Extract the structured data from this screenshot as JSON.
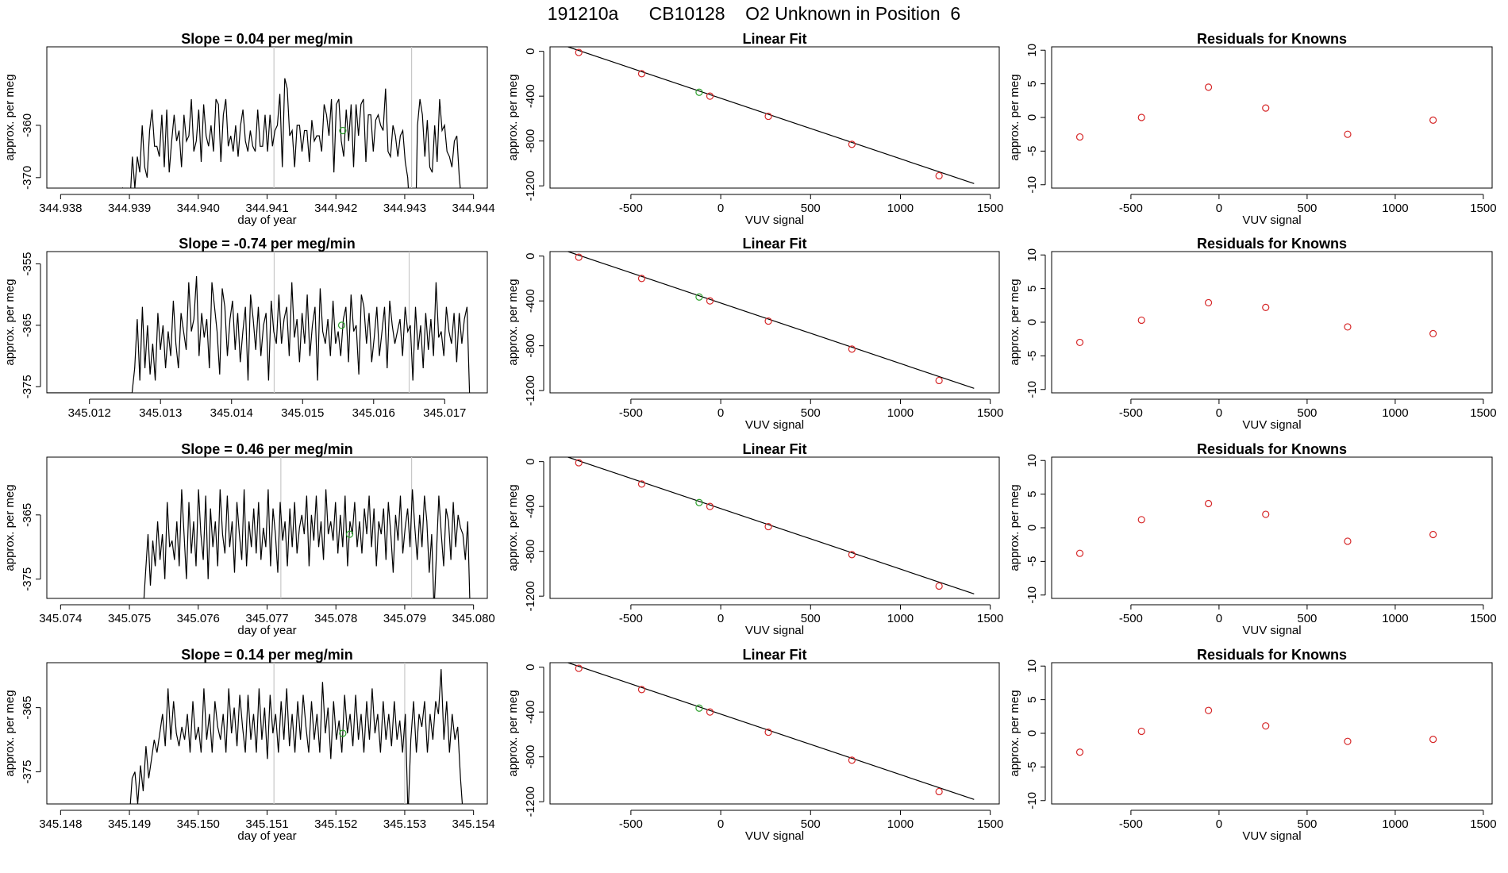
{
  "figure": {
    "title": "191210a      CB10128    O2 Unknown in Position  6"
  },
  "colors": {
    "line": "#000000",
    "known_point": "#d62728",
    "unknown_point": "#2ca02c",
    "vline": "#c8c8c8",
    "fit_line": "#000000"
  },
  "chart_data": [
    {
      "panel": "time-series-1",
      "type": "line",
      "title": "Slope =  0.04  per meg/min",
      "xlabel": "day of year",
      "ylabel": "approx. per meg",
      "xlim": [
        344.9378,
        344.9442
      ],
      "ylim": [
        -372,
        -345
      ],
      "xticks": [
        "344.938",
        "344.939",
        "344.940",
        "344.941",
        "344.942",
        "344.943",
        "344.944"
      ],
      "yticks": [
        "-370",
        "-360"
      ],
      "x_start": 344.9389,
      "x_end": 344.9439,
      "baseline": -385,
      "series_values": [
        -372,
        -378,
        -385,
        -375,
        -366,
        -372,
        -366,
        -369,
        -360,
        -368,
        -370,
        -361,
        -357,
        -364,
        -364,
        -366,
        -358,
        -368,
        -357,
        -369,
        -363,
        -358,
        -363,
        -361,
        -368,
        -358,
        -363,
        -362,
        -355,
        -365,
        -363,
        -357,
        -367,
        -356,
        -362,
        -364,
        -360,
        -365,
        -355,
        -356,
        -367,
        -358,
        -355,
        -364,
        -362,
        -365,
        -360,
        -366,
        -360,
        -357,
        -363,
        -365,
        -361,
        -364,
        -365,
        -357,
        -364,
        -364,
        -358,
        -365,
        -358,
        -364,
        -361,
        -360,
        -354,
        -368,
        -351,
        -353,
        -362,
        -361,
        -368,
        -360,
        -360,
        -365,
        -361,
        -361,
        -367,
        -359,
        -363,
        -362,
        -362,
        -365,
        -356,
        -358,
        -362,
        -355,
        -369,
        -356,
        -355,
        -363,
        -366,
        -357,
        -363,
        -356,
        -368,
        -356,
        -362,
        -356,
        -355,
        -367,
        -358,
        -358,
        -365,
        -359,
        -358,
        -360,
        -361,
        -353,
        -365,
        -366,
        -360,
        -362,
        -366,
        -362,
        -361,
        -367,
        -370,
        -378,
        -385,
        -385,
        -360,
        -355,
        -358,
        -366,
        -359,
        -368,
        -369,
        -360,
        -367,
        -355,
        -361,
        -360,
        -365,
        -366,
        -368,
        -363,
        -362,
        -370,
        -375,
        -380,
        -385
      ],
      "vlines": [
        344.9411,
        344.9431
      ],
      "unknown_point": {
        "x": 344.9421,
        "y": -361
      }
    },
    {
      "panel": "linear-fit-1",
      "type": "scatter",
      "title": "Linear Fit",
      "xlabel": "VUV signal",
      "ylabel": "approx. per meg",
      "xlim": [
        -950,
        1550
      ],
      "ylim": [
        -1220,
        40
      ],
      "xticks": [
        -500,
        0,
        500,
        1000,
        1500
      ],
      "yticks": [
        0,
        -400,
        -800,
        -1200
      ],
      "fit_line": {
        "x": [
          -850,
          1410
        ],
        "y": [
          40,
          -1180
        ]
      },
      "known_points": [
        {
          "x": -790,
          "y": -10
        },
        {
          "x": -440,
          "y": -200
        },
        {
          "x": -60,
          "y": -400
        },
        {
          "x": 265,
          "y": -580
        },
        {
          "x": 730,
          "y": -830
        },
        {
          "x": 1215,
          "y": -1110
        }
      ],
      "unknown_point": {
        "x": -120,
        "y": -365
      }
    },
    {
      "panel": "residuals-1",
      "type": "scatter",
      "title": "Residuals for Knowns",
      "xlabel": "VUV signal",
      "ylabel": "approx. per meg",
      "xlim": [
        -950,
        1550
      ],
      "ylim": [
        -10.5,
        10.5
      ],
      "xticks": [
        -500,
        0,
        500,
        1000,
        1500
      ],
      "yticks": [
        -10,
        -5,
        0,
        5,
        10
      ],
      "points": [
        {
          "x": -790,
          "y": -2.9
        },
        {
          "x": -440,
          "y": 0.0
        },
        {
          "x": -60,
          "y": 4.5
        },
        {
          "x": 265,
          "y": 1.4
        },
        {
          "x": 730,
          "y": -2.5
        },
        {
          "x": 1215,
          "y": -0.4
        }
      ]
    },
    {
      "panel": "time-series-2",
      "type": "line",
      "title": "Slope =  -0.74  per meg/min",
      "xlabel": "",
      "ylabel": "approx. per meg",
      "xlim": [
        345.0114,
        345.0176
      ],
      "ylim": [
        -376,
        -353
      ],
      "xticks": [
        "345.012",
        "345.013",
        "345.014",
        "345.015",
        "345.016",
        "345.017"
      ],
      "yticks": [
        "-375",
        "-365",
        "-355"
      ],
      "x_start": 345.0126,
      "x_end": 345.01735,
      "baseline": -376,
      "series_values": [
        -376,
        -372,
        -364,
        -374,
        -362,
        -372,
        -365,
        -373,
        -368,
        -374,
        -363,
        -369,
        -365,
        -372,
        -366,
        -370,
        -361,
        -368,
        -372,
        -363,
        -366,
        -369,
        -358,
        -366,
        -364,
        -357,
        -370,
        -363,
        -367,
        -364,
        -372,
        -358,
        -362,
        -366,
        -373,
        -359,
        -362,
        -370,
        -364,
        -361,
        -369,
        -363,
        -371,
        -366,
        -362,
        -374,
        -360,
        -364,
        -369,
        -362,
        -370,
        -365,
        -363,
        -374,
        -361,
        -366,
        -368,
        -360,
        -368,
        -364,
        -362,
        -370,
        -358,
        -367,
        -364,
        -371,
        -363,
        -368,
        -360,
        -370,
        -365,
        -362,
        -374,
        -359,
        -366,
        -368,
        -364,
        -370,
        -361,
        -368,
        -366,
        -370,
        -364,
        -362,
        -371,
        -360,
        -366,
        -365,
        -373,
        -360,
        -362,
        -368,
        -363,
        -371,
        -367,
        -362,
        -370,
        -366,
        -362,
        -372,
        -361,
        -365,
        -368,
        -366,
        -364,
        -370,
        -362,
        -366,
        -365,
        -374,
        -362,
        -369,
        -365,
        -372,
        -363,
        -369,
        -364,
        -370,
        -358,
        -367,
        -366,
        -370,
        -362,
        -366,
        -368,
        -363,
        -371,
        -363,
        -368,
        -364,
        -362,
        -376
      ],
      "vlines": [
        345.0146,
        345.0165
      ],
      "unknown_point": {
        "x": 345.01555,
        "y": -365
      }
    },
    {
      "panel": "linear-fit-2",
      "type": "scatter",
      "title": "Linear Fit",
      "xlabel": "VUV signal",
      "ylabel": "approx. per meg",
      "xlim": [
        -950,
        1550
      ],
      "ylim": [
        -1220,
        40
      ],
      "xticks": [
        -500,
        0,
        500,
        1000,
        1500
      ],
      "yticks": [
        0,
        -400,
        -800,
        -1200
      ],
      "fit_line": {
        "x": [
          -850,
          1410
        ],
        "y": [
          40,
          -1180
        ]
      },
      "known_points": [
        {
          "x": -790,
          "y": -10
        },
        {
          "x": -440,
          "y": -200
        },
        {
          "x": -60,
          "y": -400
        },
        {
          "x": 265,
          "y": -580
        },
        {
          "x": 730,
          "y": -830
        },
        {
          "x": 1215,
          "y": -1110
        }
      ],
      "unknown_point": {
        "x": -120,
        "y": -365
      }
    },
    {
      "panel": "residuals-2",
      "type": "scatter",
      "title": "Residuals for Knowns",
      "xlabel": "VUV signal",
      "ylabel": "approx. per meg",
      "xlim": [
        -950,
        1550
      ],
      "ylim": [
        -10.5,
        10.5
      ],
      "xticks": [
        -500,
        0,
        500,
        1000,
        1500
      ],
      "yticks": [
        -10,
        -5,
        0,
        5,
        10
      ],
      "points": [
        {
          "x": -790,
          "y": -3.0
        },
        {
          "x": -440,
          "y": 0.3
        },
        {
          "x": -60,
          "y": 2.9
        },
        {
          "x": 265,
          "y": 2.2
        },
        {
          "x": 730,
          "y": -0.7
        },
        {
          "x": 1215,
          "y": -1.7
        }
      ]
    },
    {
      "panel": "time-series-3",
      "type": "line",
      "title": "Slope =  0.46  per meg/min",
      "xlabel": "day of year",
      "ylabel": "approx. per meg",
      "xlim": [
        345.0738,
        345.0802
      ],
      "ylim": [
        -378,
        -356
      ],
      "xticks": [
        "345.074",
        "345.075",
        "345.076",
        "345.077",
        "345.078",
        "345.079",
        "345.080"
      ],
      "yticks": [
        "-375",
        "-365"
      ],
      "x_start": 345.0752,
      "x_end": 345.07995,
      "baseline": -380,
      "series_values": [
        -380,
        -374,
        -368,
        -376,
        -369,
        -373,
        -366,
        -372,
        -368,
        -375,
        -363,
        -370,
        -369,
        -372,
        -366,
        -373,
        -361,
        -368,
        -375,
        -363,
        -371,
        -366,
        -373,
        -361,
        -368,
        -372,
        -362,
        -375,
        -364,
        -370,
        -366,
        -373,
        -361,
        -368,
        -371,
        -362,
        -370,
        -366,
        -374,
        -363,
        -368,
        -372,
        -361,
        -373,
        -366,
        -370,
        -364,
        -371,
        -363,
        -372,
        -367,
        -370,
        -361,
        -373,
        -364,
        -368,
        -374,
        -363,
        -369,
        -366,
        -373,
        -364,
        -370,
        -363,
        -371,
        -367,
        -365,
        -368,
        -362,
        -373,
        -365,
        -369,
        -362,
        -370,
        -366,
        -372,
        -361,
        -368,
        -366,
        -369,
        -363,
        -371,
        -365,
        -370,
        -362,
        -373,
        -366,
        -368,
        -363,
        -370,
        -366,
        -371,
        -364,
        -368,
        -362,
        -370,
        -364,
        -373,
        -366,
        -368,
        -364,
        -372,
        -363,
        -368,
        -374,
        -365,
        -369,
        -362,
        -371,
        -367,
        -364,
        -370,
        -361,
        -367,
        -372,
        -365,
        -370,
        -362,
        -366,
        -374,
        -368,
        -380,
        -371,
        -362,
        -368,
        -373,
        -364,
        -366,
        -372,
        -363,
        -370,
        -365,
        -367,
        -368,
        -372,
        -366,
        -380
      ],
      "vlines": [
        345.0772,
        345.0791
      ],
      "unknown_point": {
        "x": 345.0782,
        "y": -368
      }
    },
    {
      "panel": "linear-fit-3",
      "type": "scatter",
      "title": "Linear Fit",
      "xlabel": "VUV signal",
      "ylabel": "approx. per meg",
      "xlim": [
        -950,
        1550
      ],
      "ylim": [
        -1220,
        40
      ],
      "xticks": [
        -500,
        0,
        500,
        1000,
        1500
      ],
      "yticks": [
        0,
        -400,
        -800,
        -1200
      ],
      "fit_line": {
        "x": [
          -850,
          1410
        ],
        "y": [
          40,
          -1180
        ]
      },
      "known_points": [
        {
          "x": -790,
          "y": -10
        },
        {
          "x": -440,
          "y": -200
        },
        {
          "x": -60,
          "y": -400
        },
        {
          "x": 265,
          "y": -580
        },
        {
          "x": 730,
          "y": -830
        },
        {
          "x": 1215,
          "y": -1110
        }
      ],
      "unknown_point": {
        "x": -120,
        "y": -365
      }
    },
    {
      "panel": "residuals-3",
      "type": "scatter",
      "title": "Residuals for Knowns",
      "xlabel": "VUV signal",
      "ylabel": "approx. per meg",
      "xlim": [
        -950,
        1550
      ],
      "ylim": [
        -10.5,
        10.5
      ],
      "xticks": [
        -500,
        0,
        500,
        1000,
        1500
      ],
      "yticks": [
        -10,
        -5,
        0,
        5,
        10
      ],
      "points": [
        {
          "x": -790,
          "y": -3.8
        },
        {
          "x": -440,
          "y": 1.2
        },
        {
          "x": -60,
          "y": 3.6
        },
        {
          "x": 265,
          "y": 2.0
        },
        {
          "x": 730,
          "y": -2.0
        },
        {
          "x": 1215,
          "y": -1.0
        }
      ]
    },
    {
      "panel": "time-series-4",
      "type": "line",
      "title": "Slope =  0.14  per meg/min",
      "xlabel": "day of year",
      "ylabel": "approx. per meg",
      "xlim": [
        345.1478,
        345.1542
      ],
      "ylim": [
        -380,
        -358
      ],
      "xticks": [
        "345.148",
        "345.149",
        "345.150",
        "345.151",
        "345.152",
        "345.153",
        "345.154"
      ],
      "yticks": [
        "-375",
        "-365"
      ],
      "x_start": 345.149,
      "x_end": 345.15385,
      "baseline": -382,
      "series_values": [
        -382,
        -376,
        -375,
        -380,
        -374,
        -378,
        -371,
        -376,
        -373,
        -370,
        -372,
        -369,
        -366,
        -371,
        -362,
        -370,
        -364,
        -369,
        -371,
        -368,
        -370,
        -366,
        -372,
        -364,
        -370,
        -368,
        -372,
        -362,
        -370,
        -366,
        -372,
        -364,
        -368,
        -370,
        -366,
        -372,
        -362,
        -369,
        -365,
        -371,
        -363,
        -368,
        -372,
        -363,
        -370,
        -366,
        -372,
        -362,
        -370,
        -365,
        -373,
        -363,
        -369,
        -366,
        -372,
        -364,
        -370,
        -362,
        -371,
        -366,
        -372,
        -364,
        -370,
        -363,
        -368,
        -372,
        -364,
        -370,
        -366,
        -372,
        -361,
        -369,
        -365,
        -373,
        -364,
        -370,
        -367,
        -372,
        -363,
        -369,
        -366,
        -371,
        -363,
        -370,
        -366,
        -372,
        -364,
        -370,
        -362,
        -369,
        -366,
        -372,
        -364,
        -370,
        -366,
        -371,
        -364,
        -370,
        -367,
        -372,
        -366,
        -382,
        -370,
        -364,
        -372,
        -366,
        -368,
        -364,
        -372,
        -366,
        -370,
        -364,
        -366,
        -359,
        -370,
        -364,
        -372,
        -366,
        -370,
        -368,
        -376,
        -382
      ],
      "vlines": [
        345.1511,
        345.153
      ],
      "unknown_point": {
        "x": 345.1521,
        "y": -369
      }
    },
    {
      "panel": "linear-fit-4",
      "type": "scatter",
      "title": "Linear Fit",
      "xlabel": "VUV signal",
      "ylabel": "approx. per meg",
      "xlim": [
        -950,
        1550
      ],
      "ylim": [
        -1220,
        40
      ],
      "xticks": [
        -500,
        0,
        500,
        1000,
        1500
      ],
      "yticks": [
        0,
        -400,
        -800,
        -1200
      ],
      "fit_line": {
        "x": [
          -850,
          1410
        ],
        "y": [
          40,
          -1180
        ]
      },
      "known_points": [
        {
          "x": -790,
          "y": -10
        },
        {
          "x": -440,
          "y": -200
        },
        {
          "x": -60,
          "y": -400
        },
        {
          "x": 265,
          "y": -580
        },
        {
          "x": 730,
          "y": -830
        },
        {
          "x": 1215,
          "y": -1110
        }
      ],
      "unknown_point": {
        "x": -120,
        "y": -365
      }
    },
    {
      "panel": "residuals-4",
      "type": "scatter",
      "title": "Residuals for Knowns",
      "xlabel": "VUV signal",
      "ylabel": "approx. per meg",
      "xlim": [
        -950,
        1550
      ],
      "ylim": [
        -10.5,
        10.5
      ],
      "xticks": [
        -500,
        0,
        500,
        1000,
        1500
      ],
      "yticks": [
        -10,
        -5,
        0,
        5,
        10
      ],
      "points": [
        {
          "x": -790,
          "y": -2.8
        },
        {
          "x": -440,
          "y": 0.3
        },
        {
          "x": -60,
          "y": 3.4
        },
        {
          "x": 265,
          "y": 1.1
        },
        {
          "x": 730,
          "y": -1.2
        },
        {
          "x": 1215,
          "y": -0.9
        }
      ]
    }
  ]
}
